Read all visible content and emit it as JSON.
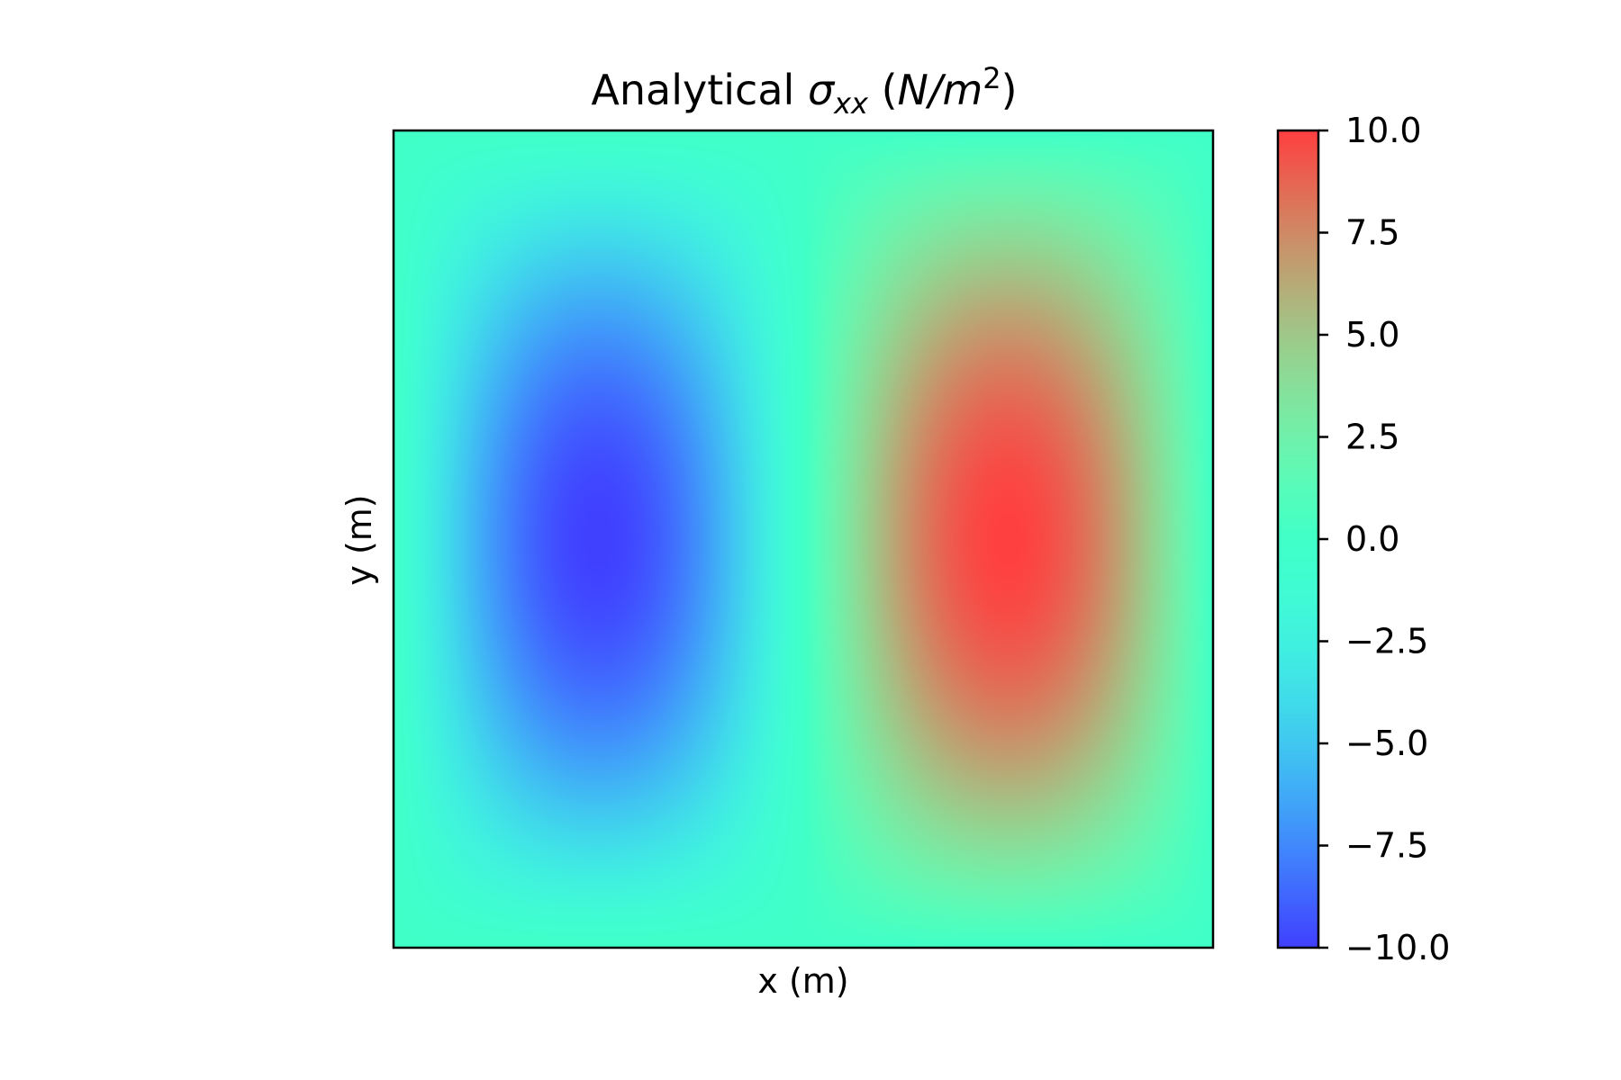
{
  "chart_data": {
    "type": "heatmap",
    "title": {
      "prefix": "Analytical ",
      "symbol": "σ",
      "subscript": "xx",
      "unit_open": " (",
      "unit_var": "N/m",
      "unit_exp": "2",
      "unit_close": ")"
    },
    "xlabel": "x (m)",
    "ylabel": "y (m)",
    "x_ticks_shown": false,
    "y_ticks_shown": false,
    "colormap": "rainbow",
    "colormap_alpha": 0.75,
    "colorbar": {
      "range": [
        -10.0,
        10.0
      ],
      "ticks": [
        10.0,
        7.5,
        5.0,
        2.5,
        0.0,
        -2.5,
        -5.0,
        -7.5,
        -10.0
      ],
      "tick_labels": [
        "10.0",
        "7.5",
        "5.0",
        "2.5",
        "0.0",
        "−2.5",
        "−5.0",
        "−7.5",
        "−10.0"
      ]
    },
    "field": {
      "description_of_values": "sigma_xx = -10*sin(2*pi*x)*sin(pi*y) over unit square",
      "x_range": [
        0,
        1
      ],
      "y_range": [
        0,
        1
      ],
      "min_value": -10.0,
      "max_value": 10.0,
      "min_location": [
        0.25,
        0.5
      ],
      "max_location": [
        0.75,
        0.5
      ]
    }
  }
}
